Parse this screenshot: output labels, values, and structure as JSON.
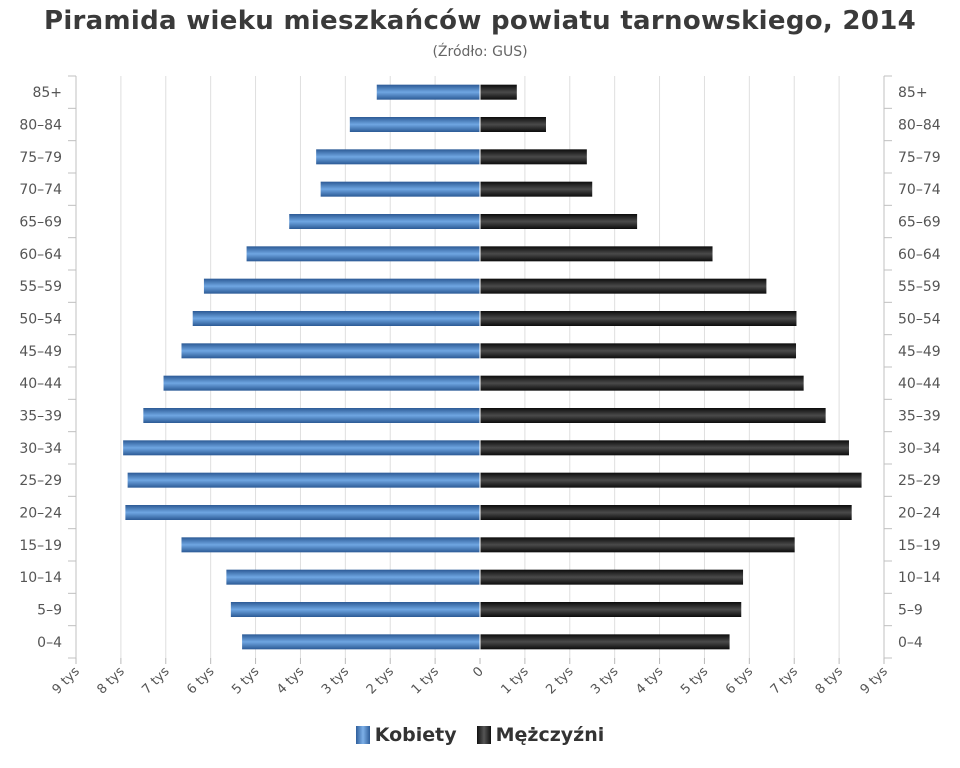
{
  "chart_data": {
    "type": "bar",
    "orientation": "horizontal-pyramid",
    "title": "Piramida wieku mieszkańców powiatu tarnowskiego, 2014",
    "subtitle": "(Źródło: GUS)",
    "categories": [
      "85+",
      "80–84",
      "75–79",
      "70–74",
      "65–69",
      "60–64",
      "55–59",
      "50–54",
      "45–49",
      "40–44",
      "35–39",
      "30–34",
      "25–29",
      "20–24",
      "15–19",
      "10–14",
      "5–9",
      "0–4"
    ],
    "series": [
      {
        "name": "Kobiety",
        "side": "left",
        "color": "#3f78bd",
        "values": [
          2300,
          2900,
          3650,
          3550,
          4250,
          5200,
          6150,
          6400,
          6650,
          7050,
          7500,
          7950,
          7850,
          7900,
          6650,
          5650,
          5550,
          5300
        ]
      },
      {
        "name": "Mężczyźni",
        "side": "right",
        "color": "#1a1a1a",
        "values": [
          820,
          1470,
          2380,
          2500,
          3500,
          5180,
          6380,
          7050,
          7040,
          7210,
          7700,
          8220,
          8500,
          8280,
          7010,
          5860,
          5820,
          5560
        ]
      }
    ],
    "xticks": [
      "9 tys",
      "8 tys",
      "7 tys",
      "6 tys",
      "5 tys",
      "4 tys",
      "3 tys",
      "2 tys",
      "1 tys",
      "0",
      "1 tys",
      "2 tys",
      "3 tys",
      "4 tys",
      "5 tys",
      "6 tys",
      "7 tys",
      "8 tys",
      "9 tys"
    ],
    "xlim": [
      -9000,
      9000
    ],
    "grid": true,
    "legend": "bottom-center"
  }
}
